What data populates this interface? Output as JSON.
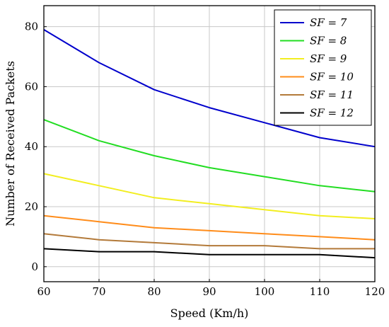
{
  "chart_data": {
    "type": "line",
    "xlabel": "Speed (Km/h)",
    "ylabel": "Number of Received Packets",
    "x": [
      60,
      70,
      80,
      90,
      100,
      110,
      120
    ],
    "xlim": [
      60,
      120
    ],
    "ylim": [
      -5,
      87
    ],
    "xticks": [
      "60",
      "70",
      "80",
      "90",
      "100",
      "110",
      "120"
    ],
    "yticks": [
      "0",
      "20",
      "40",
      "60",
      "80"
    ],
    "ytick_values": [
      0,
      20,
      40,
      60,
      80
    ],
    "grid": true,
    "legend_position": "top-right",
    "series": [
      {
        "name": "SF = 7",
        "color": "#0000cc",
        "values": [
          79,
          68,
          59,
          53,
          48,
          43,
          40
        ]
      },
      {
        "name": "SF = 8",
        "color": "#22dd22",
        "values": [
          49,
          42,
          37,
          33,
          30,
          27,
          25
        ]
      },
      {
        "name": "SF = 9",
        "color": "#f2ee20",
        "values": [
          31,
          27,
          23,
          21,
          19,
          17,
          16
        ]
      },
      {
        "name": "SF = 10",
        "color": "#ff8c1a",
        "values": [
          17,
          15,
          13,
          12,
          11,
          10,
          9
        ]
      },
      {
        "name": "SF = 11",
        "color": "#b37a3a",
        "values": [
          11,
          9,
          8,
          7,
          7,
          6,
          6
        ]
      },
      {
        "name": "SF = 12",
        "color": "#000000",
        "values": [
          6,
          5,
          5,
          4,
          4,
          4,
          3
        ]
      }
    ]
  }
}
